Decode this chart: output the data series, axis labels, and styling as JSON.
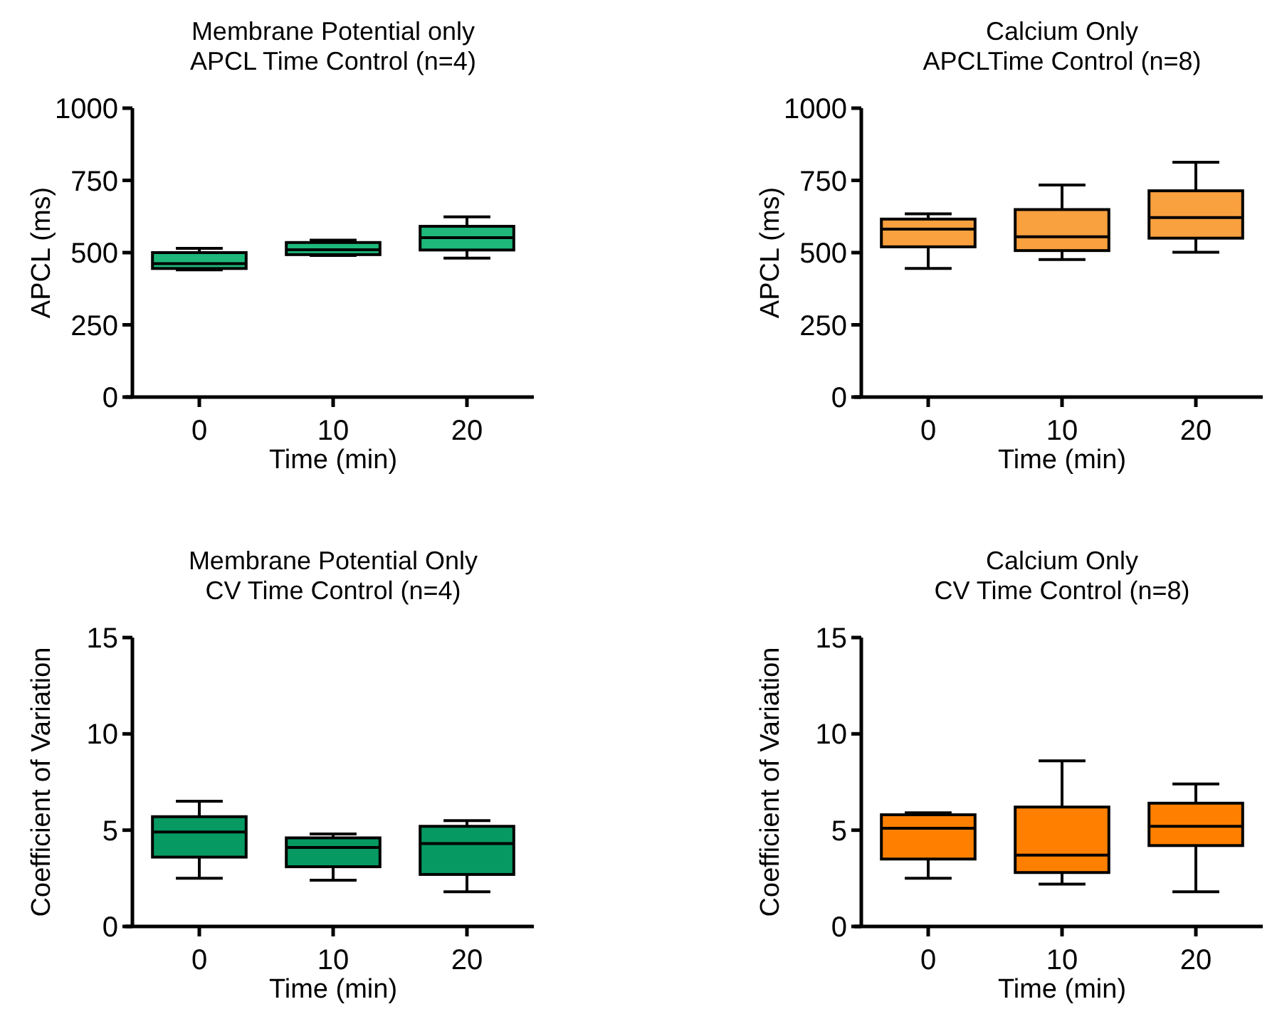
{
  "chart_data": [
    {
      "type": "box",
      "title": "Membrane Potential only\nAPCL Time Control (n=4)",
      "xlabel": "Time (min)",
      "ylabel": "APCL (ms)",
      "categories": [
        "0",
        "10",
        "20"
      ],
      "color": "#1db87a",
      "ylim": [
        0,
        1000
      ],
      "yticks": [
        0,
        250,
        500,
        750,
        1000
      ],
      "boxes": [
        {
          "low": 440,
          "q1": 445,
          "median": 462,
          "q3": 500,
          "high": 515
        },
        {
          "low": 490,
          "q1": 493,
          "median": 510,
          "q3": 535,
          "high": 543
        },
        {
          "low": 481,
          "q1": 509,
          "median": 552,
          "q3": 591,
          "high": 624
        }
      ]
    },
    {
      "type": "box",
      "title": "Calcium Only\nAPCLTime Control (n=8)",
      "xlabel": "Time (min)",
      "ylabel": "APCL (ms)",
      "categories": [
        "0",
        "10",
        "20"
      ],
      "color": "#f9a03f",
      "ylim": [
        0,
        1000
      ],
      "yticks": [
        0,
        250,
        500,
        750,
        1000
      ],
      "boxes": [
        {
          "low": 445,
          "q1": 520,
          "median": 581,
          "q3": 616,
          "high": 634
        },
        {
          "low": 476,
          "q1": 507,
          "median": 555,
          "q3": 649,
          "high": 734
        },
        {
          "low": 501,
          "q1": 550,
          "median": 621,
          "q3": 714,
          "high": 813
        }
      ]
    },
    {
      "type": "box",
      "title": "Membrane Potential Only\nCV Time Control (n=4)",
      "xlabel": "Time (min)",
      "ylabel": "Coefficient of Variation",
      "categories": [
        "0",
        "10",
        "20"
      ],
      "color": "#069a62",
      "ylim": [
        0,
        15
      ],
      "yticks": [
        0,
        5,
        10,
        15
      ],
      "boxes": [
        {
          "low": 2.5,
          "q1": 3.6,
          "median": 4.9,
          "q3": 5.7,
          "high": 6.5
        },
        {
          "low": 2.4,
          "q1": 3.1,
          "median": 4.1,
          "q3": 4.6,
          "high": 4.8
        },
        {
          "low": 1.8,
          "q1": 2.7,
          "median": 4.3,
          "q3": 5.2,
          "high": 5.5
        }
      ]
    },
    {
      "type": "box",
      "title": "Calcium Only\nCV Time Control (n=8)",
      "xlabel": "Time (min)",
      "ylabel": "Coefficient of Variation",
      "categories": [
        "0",
        "10",
        "20"
      ],
      "color": "#ff8000",
      "ylim": [
        0,
        15
      ],
      "yticks": [
        0,
        5,
        10,
        15
      ],
      "boxes": [
        {
          "low": 2.5,
          "q1": 3.5,
          "median": 5.1,
          "q3": 5.8,
          "high": 5.9
        },
        {
          "low": 2.2,
          "q1": 2.8,
          "median": 3.7,
          "q3": 6.2,
          "high": 8.6
        },
        {
          "low": 1.8,
          "q1": 4.2,
          "median": 5.2,
          "q3": 6.4,
          "high": 7.4
        }
      ]
    }
  ]
}
